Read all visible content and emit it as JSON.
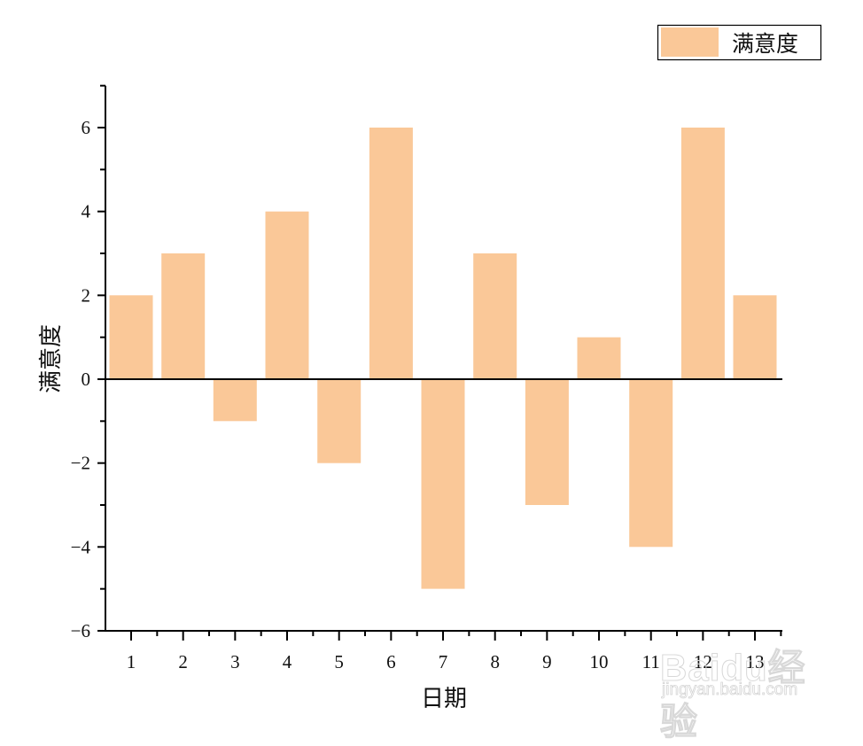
{
  "chart_data": {
    "type": "bar",
    "title": "",
    "xlabel": "日期",
    "ylabel": "满意度",
    "categories": [
      "1",
      "2",
      "3",
      "4",
      "5",
      "6",
      "7",
      "8",
      "9",
      "10",
      "11",
      "12",
      "13"
    ],
    "series": [
      {
        "name": "满意度",
        "color": "#FAC898",
        "values": [
          2,
          3,
          -1,
          4,
          -2,
          6,
          -5,
          3,
          -3,
          1,
          -4,
          6,
          2
        ]
      }
    ],
    "ylim": [
      -6,
      7
    ],
    "yticks": [
      -6,
      -4,
      -2,
      0,
      2,
      4,
      6
    ],
    "ytick_labels": [
      "−6",
      "−4",
      "−2",
      "0",
      "2",
      "4",
      "6"
    ],
    "grid": false,
    "legend_position": "top-right",
    "zero_line": true
  },
  "legend": {
    "label": "满意度",
    "swatch_color": "#FAC898"
  },
  "watermark": {
    "brand": "Baidu经验",
    "url": "jingyan.baidu.com"
  }
}
